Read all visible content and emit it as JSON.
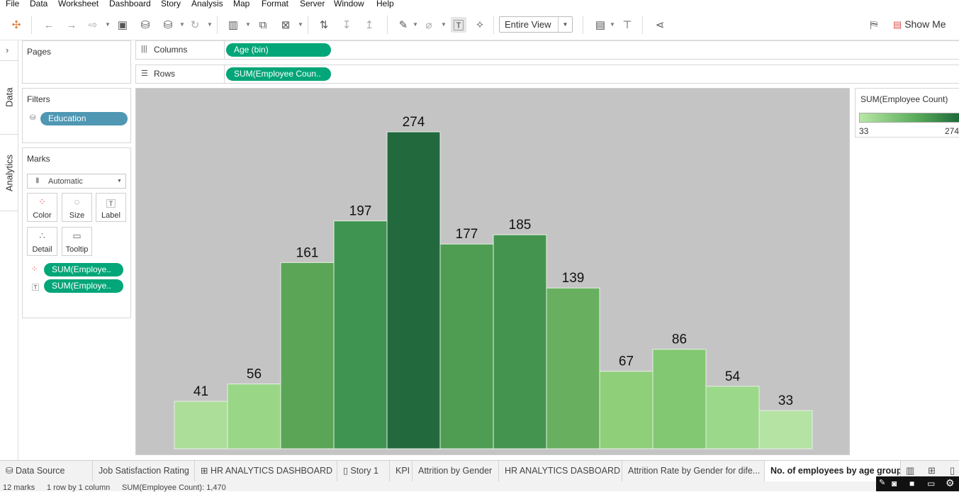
{
  "menu": [
    "File",
    "Data",
    "Worksheet",
    "Dashboard",
    "Story",
    "Analysis",
    "Map",
    "Format",
    "Server",
    "Window",
    "Help"
  ],
  "toolbar": {
    "fit_value": "Entire View",
    "show_me_label": "Show Me"
  },
  "side_tabs": {
    "data": "Data",
    "analytics": "Analytics"
  },
  "pages": {
    "title": "Pages"
  },
  "filters": {
    "title": "Filters",
    "pill": "Education"
  },
  "marks": {
    "title": "Marks",
    "type": "Automatic",
    "buttons": {
      "color": "Color",
      "size": "Size",
      "label": "Label",
      "detail": "Detail",
      "tooltip": "Tooltip"
    },
    "pills": [
      "SUM(Employe..",
      "SUM(Employe.."
    ]
  },
  "columns": {
    "label": "Columns",
    "pill": "Age (bin)"
  },
  "rows": {
    "label": "Rows",
    "pill": "SUM(Employee Coun.."
  },
  "legend": {
    "title": "SUM(Employee Count)",
    "min": "33",
    "max": "274"
  },
  "chart_data": {
    "type": "bar",
    "values": [
      41,
      56,
      161,
      197,
      274,
      177,
      185,
      139,
      67,
      86,
      54,
      33
    ],
    "colors": [
      "#acde99",
      "#99d686",
      "#5aa556",
      "#3e9450",
      "#22693e",
      "#4e9d53",
      "#44944f",
      "#68b05f",
      "#8fcf7a",
      "#82c872",
      "#9bd889",
      "#b4e3a4"
    ],
    "background": "#c4c4c4",
    "grid": false
  },
  "sheet_tabs": [
    "Data Source",
    "Job Satisfaction Rating",
    "HR ANALYTICS DASHBOARD",
    "Story 1",
    "KPI",
    "Attrition by Gender",
    "HR ANALYTICS DASBOARD",
    "Attrition Rate by Gender for dife...",
    "No. of employees by age group"
  ],
  "status": {
    "marks": "12 marks",
    "dims": "1 row by 1 column",
    "sum": "SUM(Employee Count): 1,470"
  }
}
